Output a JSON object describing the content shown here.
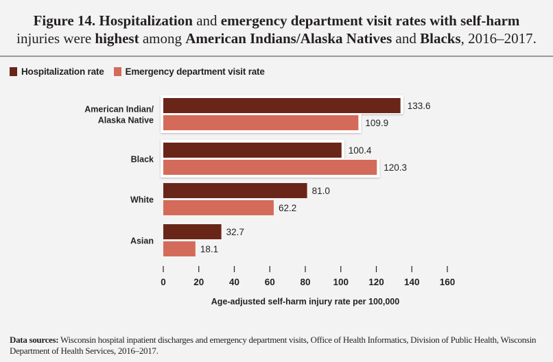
{
  "title": {
    "line1": [
      {
        "text": "Figure 14. Hospitalization",
        "bold": true
      },
      {
        "text": " and ",
        "bold": false
      },
      {
        "text": "emergency department visit rates with self-harm",
        "bold": true
      }
    ],
    "line2": [
      {
        "text": "injuries were ",
        "bold": false
      },
      {
        "text": "highest",
        "bold": true
      },
      {
        "text": " among ",
        "bold": false
      },
      {
        "text": "American Indians/Alaska Natives",
        "bold": true
      },
      {
        "text": " and ",
        "bold": false
      },
      {
        "text": "Blacks",
        "bold": true
      },
      {
        "text": ", 2016–2017.",
        "bold": false
      }
    ]
  },
  "colors": {
    "hospitalization": "#6a2519",
    "emergency": "#d46b5a",
    "highlight": "#ffffff"
  },
  "legend": [
    {
      "label": "Hospitalization rate",
      "series": "hospitalization"
    },
    {
      "label": "Emergency department visit rate",
      "series": "emergency"
    }
  ],
  "chart_data": {
    "type": "bar",
    "orientation": "horizontal",
    "title": "Figure 14. Hospitalization and emergency department visit rates with self-harm injuries were highest among American Indians/Alaska Natives and Blacks, 2016–2017.",
    "categories": [
      "American Indian/\nAlaska Native",
      "Black",
      "White",
      "Asian"
    ],
    "category_lines": [
      [
        "American Indian/",
        "Alaska Native"
      ],
      [
        "Black"
      ],
      [
        "White"
      ],
      [
        "Asian"
      ]
    ],
    "highlighted_categories": [
      "American Indian/\nAlaska Native",
      "Black"
    ],
    "series": [
      {
        "name": "Hospitalization rate",
        "key": "hospitalization",
        "values": [
          133.6,
          100.4,
          81.0,
          32.7
        ],
        "labels": [
          "133.6",
          "100.4",
          "81.0",
          "32.7"
        ]
      },
      {
        "name": "Emergency department visit rate",
        "key": "emergency",
        "values": [
          109.9,
          120.3,
          62.2,
          18.1
        ],
        "labels": [
          "109.9",
          "120.3",
          "62.2",
          "18.1"
        ]
      }
    ],
    "xlabel": "Age-adjusted self-harm injury rate per 100,000",
    "ylabel": "",
    "xlim": [
      0,
      160
    ],
    "xticks": [
      0,
      20,
      40,
      60,
      80,
      100,
      120,
      140,
      160
    ],
    "grid": false,
    "legend_position": "top-left"
  },
  "footer": {
    "label": "Data sources:",
    "text": " Wisconsin hospital inpatient discharges and emergency department visits, Office of Health Informatics, Division of Public Health, Wisconsin Department of Health Services, 2016–2017."
  }
}
